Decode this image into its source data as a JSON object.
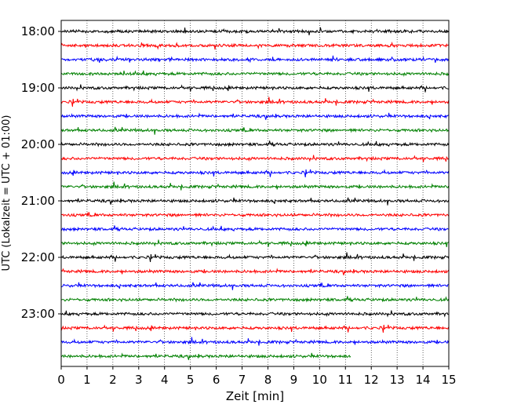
{
  "chart_data": {
    "type": "line",
    "subtype": "helicorder-seismogram",
    "xlabel": "Zeit  [min]",
    "ylabel": "UTC (Lokalzeit = UTC + 01:00)",
    "xlim": [
      0,
      15
    ],
    "x_ticks": [
      "0",
      "1",
      "2",
      "3",
      "4",
      "5",
      "6",
      "7",
      "8",
      "9",
      "10",
      "11",
      "12",
      "13",
      "14",
      "15"
    ],
    "y_tick_labels": [
      "18:00",
      "19:00",
      "20:00",
      "21:00",
      "22:00",
      "23:00"
    ],
    "grid": "vertical dotted at each minute",
    "trace_interval_minutes": 15,
    "colors": [
      "#000000",
      "#ff0000",
      "#0000ff",
      "#008000"
    ],
    "series": [
      {
        "start": "18:00",
        "end_minute": 15,
        "color": "#000000"
      },
      {
        "start": "18:15",
        "end_minute": 15,
        "color": "#ff0000"
      },
      {
        "start": "18:30",
        "end_minute": 15,
        "color": "#0000ff"
      },
      {
        "start": "18:45",
        "end_minute": 15,
        "color": "#008000"
      },
      {
        "start": "19:00",
        "end_minute": 15,
        "color": "#000000"
      },
      {
        "start": "19:15",
        "end_minute": 15,
        "color": "#ff0000"
      },
      {
        "start": "19:30",
        "end_minute": 15,
        "color": "#0000ff"
      },
      {
        "start": "19:45",
        "end_minute": 15,
        "color": "#008000"
      },
      {
        "start": "20:00",
        "end_minute": 15,
        "color": "#000000"
      },
      {
        "start": "20:15",
        "end_minute": 15,
        "color": "#ff0000"
      },
      {
        "start": "20:30",
        "end_minute": 15,
        "color": "#0000ff"
      },
      {
        "start": "20:45",
        "end_minute": 15,
        "color": "#008000"
      },
      {
        "start": "21:00",
        "end_minute": 15,
        "color": "#000000"
      },
      {
        "start": "21:15",
        "end_minute": 15,
        "color": "#ff0000"
      },
      {
        "start": "21:30",
        "end_minute": 15,
        "color": "#0000ff"
      },
      {
        "start": "21:45",
        "end_minute": 15,
        "color": "#008000"
      },
      {
        "start": "22:00",
        "end_minute": 15,
        "color": "#000000"
      },
      {
        "start": "22:15",
        "end_minute": 15,
        "color": "#ff0000"
      },
      {
        "start": "22:30",
        "end_minute": 15,
        "color": "#0000ff"
      },
      {
        "start": "22:45",
        "end_minute": 15,
        "color": "#008000"
      },
      {
        "start": "23:00",
        "end_minute": 15,
        "color": "#000000"
      },
      {
        "start": "23:15",
        "end_minute": 15,
        "color": "#ff0000"
      },
      {
        "start": "23:30",
        "end_minute": 15,
        "color": "#0000ff"
      },
      {
        "start": "23:45",
        "end_minute": 11.2,
        "color": "#008000"
      }
    ]
  }
}
